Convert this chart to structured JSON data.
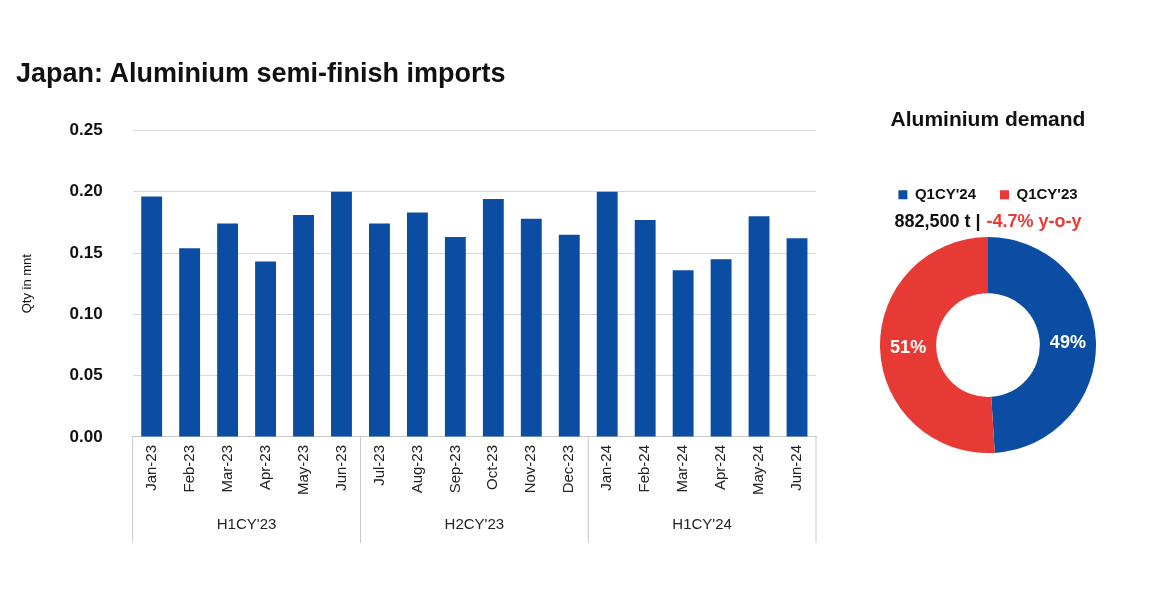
{
  "chart_data": [
    {
      "type": "bar",
      "title": "Japan: Aluminium semi-finish imports",
      "ylabel": "Qty in mnt",
      "categories": [
        "Jan-23",
        "Feb-23",
        "Mar-23",
        "Apr-23",
        "May-23",
        "Jun-23",
        "Jul-23",
        "Aug-23",
        "Sep-23",
        "Oct-23",
        "Nov-23",
        "Dec-23",
        "Jan-24",
        "Feb-24",
        "Mar-24",
        "Apr-24",
        "May-24",
        "Jun-24"
      ],
      "values": [
        0.196,
        0.154,
        0.174,
        0.143,
        0.181,
        0.2,
        0.174,
        0.183,
        0.163,
        0.194,
        0.178,
        0.165,
        0.2,
        0.177,
        0.136,
        0.145,
        0.18,
        0.162
      ],
      "color": "#0a4da2",
      "ylim": [
        0,
        0.25
      ],
      "yticks": [
        {
          "value": 0,
          "label": "0.00"
        },
        {
          "value": 0.05,
          "label": "0.05"
        },
        {
          "value": 0.1,
          "label": "0.10"
        },
        {
          "value": 0.15,
          "label": "0.15"
        },
        {
          "value": 0.2,
          "label": "0.20"
        },
        {
          "value": 0.25,
          "label": "0.25"
        }
      ],
      "grid": "y",
      "legend": false,
      "annotations": [
        "H1CY'23",
        "H2CY'23",
        "H1CY'24"
      ]
    },
    {
      "type": "donut",
      "title": "Aluminium demand",
      "subtitle": "882,500 t |",
      "categories": [
        "Q1CY'24",
        "Q1CY'23"
      ],
      "values": [
        49,
        51
      ],
      "colors": [
        "#0a4da2",
        "#e83a35"
      ],
      "value_labels": [
        "49%",
        "51%"
      ],
      "legend": "top",
      "annotations": [
        "-4.7% y-o-y"
      ]
    }
  ]
}
